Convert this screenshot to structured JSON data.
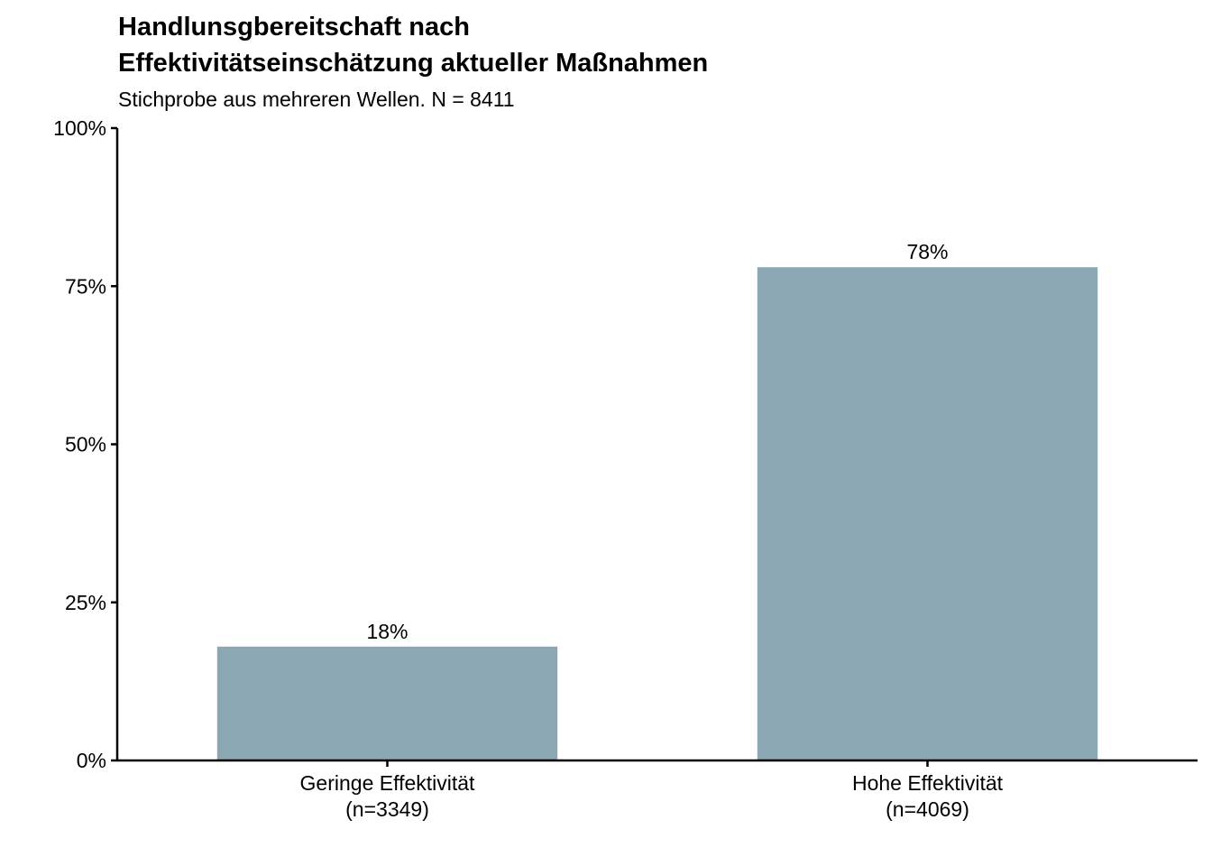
{
  "chart_data": {
    "type": "bar",
    "title_lines": [
      "Handlunsgbereitschaft nach",
      "Effektivitätseinschätzung aktueller Maßnahmen"
    ],
    "subtitle": "Stichprobe aus mehreren Wellen. N = 8411",
    "categories": [
      {
        "line1": "Geringe Effektivität",
        "line2": "(n=3349)"
      },
      {
        "line1": "Hohe Effektivität",
        "line2": "(n=4069)"
      }
    ],
    "values": [
      0.18,
      0.78
    ],
    "value_labels": [
      "18%",
      "78%"
    ],
    "ylim": [
      0,
      1
    ],
    "y_ticks": [
      {
        "value": 0,
        "label": "0%"
      },
      {
        "value": 0.25,
        "label": "25%"
      },
      {
        "value": 0.5,
        "label": "50%"
      },
      {
        "value": 0.75,
        "label": "75%"
      },
      {
        "value": 1,
        "label": "100%"
      }
    ],
    "bar_color": "#8ba7b4",
    "grid": false,
    "legend": "none"
  }
}
